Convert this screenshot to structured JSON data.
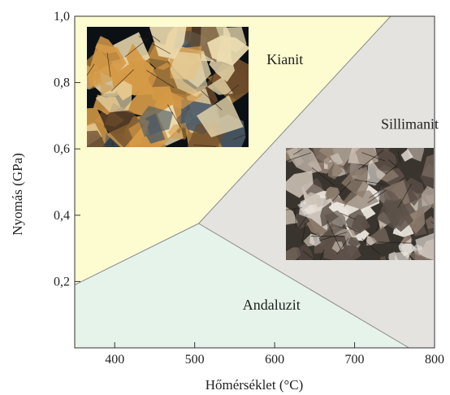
{
  "chart_data": {
    "type": "area",
    "xlabel": "Hőmérséklet (°C)",
    "ylabel": "Nyomás (GPa)",
    "xlim": [
      350,
      800
    ],
    "ylim": [
      0,
      1.0
    ],
    "x_ticks": [
      {
        "value": 400,
        "label": "400"
      },
      {
        "value": 500,
        "label": "500"
      },
      {
        "value": 600,
        "label": "600"
      },
      {
        "value": 700,
        "label": "700"
      },
      {
        "value": 800,
        "label": "800"
      }
    ],
    "y_ticks": [
      {
        "value": 0.2,
        "label": "0,2"
      },
      {
        "value": 0.4,
        "label": "0,4"
      },
      {
        "value": 0.6,
        "label": "0,6"
      },
      {
        "value": 0.8,
        "label": "0,8"
      },
      {
        "value": 1.0,
        "label": "1,0"
      }
    ],
    "triple_point": {
      "T": 505,
      "P": 0.375
    },
    "fields": [
      {
        "name": "Kianit",
        "color": "#fdfbd0",
        "polygon": [
          [
            350,
            0.19
          ],
          [
            505,
            0.375
          ],
          [
            745,
            1.0
          ],
          [
            350,
            1.0
          ]
        ],
        "label_at": {
          "T": 590,
          "P": 0.855
        }
      },
      {
        "name": "Sillimanit",
        "color": "#e4e3df",
        "polygon": [
          [
            505,
            0.375
          ],
          [
            745,
            1.0
          ],
          [
            800,
            1.0
          ],
          [
            800,
            0
          ],
          [
            768,
            0
          ]
        ],
        "label_at": {
          "T": 733,
          "P": 0.66
        }
      },
      {
        "name": "Andaluzit",
        "color": "#e6f3ea",
        "polygon": [
          [
            350,
            0
          ],
          [
            350,
            0.19
          ],
          [
            505,
            0.375
          ],
          [
            768,
            0
          ]
        ],
        "label_at": {
          "T": 560,
          "P": 0.115
        }
      }
    ],
    "boundaries": [
      {
        "name": "kianit-andaluzit",
        "points": [
          [
            350,
            0.19
          ],
          [
            505,
            0.375
          ]
        ]
      },
      {
        "name": "kianit-sillimanit",
        "points": [
          [
            505,
            0.375
          ],
          [
            745,
            1.0
          ]
        ]
      },
      {
        "name": "andaluzit-sillimanit",
        "points": [
          [
            505,
            0.375
          ],
          [
            768,
            0
          ]
        ]
      }
    ],
    "photos": [
      {
        "name": "kianit-photo",
        "palette": [
          "#0b1015",
          "#d59a46",
          "#ecdcb0",
          "#4a5a66",
          "#6b4a2b"
        ]
      },
      {
        "name": "sillimanit-photo",
        "palette": [
          "#3a342e",
          "#8a7a6c",
          "#cbbfb2",
          "#5c5048",
          "#e9e4dd"
        ]
      }
    ]
  }
}
